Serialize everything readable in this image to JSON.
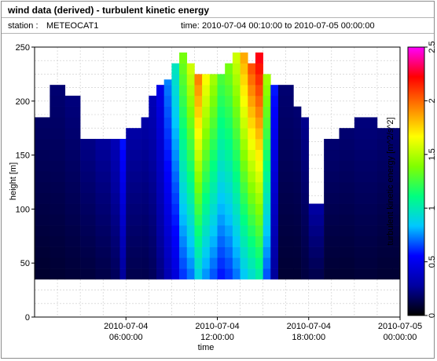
{
  "header": {
    "title": "wind data (derived) - turbulent kinetic energy",
    "station_label": "station :",
    "station_value": "METEOCAT1",
    "time_label": "time:",
    "time_range": "2010-07-04 00:10:00 to 2010-07-05 00:00:00"
  },
  "chart_data": {
    "type": "heatmap",
    "xlabel": "time",
    "ylabel": "height [m]",
    "colorbar_label": "turbulent kinetic energy [m^2/s^2]",
    "xlim_hours": [
      0,
      24
    ],
    "ylim": [
      0,
      250
    ],
    "x_ticks": [
      {
        "hour": 6,
        "line1": "2010-07-04",
        "line2": "06:00:00"
      },
      {
        "hour": 12,
        "line1": "2010-07-04",
        "line2": "12:00:00"
      },
      {
        "hour": 18,
        "line1": "2010-07-04",
        "line2": "18:00:00"
      },
      {
        "hour": 24,
        "line1": "2010-07-05",
        "line2": "00:00:00"
      }
    ],
    "y_ticks": [
      0,
      50,
      100,
      150,
      200,
      250
    ],
    "colorbar_ticks": [
      0,
      0.5,
      1,
      1.5,
      2,
      2.5
    ],
    "colorbar_range": [
      0,
      2.5
    ],
    "grid": true,
    "colormap": [
      "#000000",
      "#0000a0",
      "#0000ff",
      "#00c8ff",
      "#00ff80",
      "#80ff00",
      "#ffff00",
      "#ff8000",
      "#ff0000",
      "#ff00ff"
    ],
    "columns": [
      {
        "h": 0.0,
        "top": 185,
        "tke": 0.18
      },
      {
        "h": 1.0,
        "top": 215,
        "tke": 0.2
      },
      {
        "h": 2.0,
        "top": 205,
        "tke": 0.22
      },
      {
        "h": 3.0,
        "top": 165,
        "tke": 0.24
      },
      {
        "h": 4.0,
        "top": 165,
        "tke": 0.28
      },
      {
        "h": 5.0,
        "top": 165,
        "tke": 0.35
      },
      {
        "h": 5.6,
        "top": 165,
        "tke": 0.6
      },
      {
        "h": 6.0,
        "top": 175,
        "tke": 0.3
      },
      {
        "h": 7.0,
        "top": 185,
        "tke": 0.3
      },
      {
        "h": 7.5,
        "top": 205,
        "tke": 0.35
      },
      {
        "h": 8.0,
        "top": 215,
        "tke": 0.5
      },
      {
        "h": 8.5,
        "top": 220,
        "tke": 0.75
      },
      {
        "h": 9.0,
        "top": 235,
        "tke": 1.0
      },
      {
        "h": 9.5,
        "top": 245,
        "tke": 1.4
      },
      {
        "h": 10.0,
        "top": 235,
        "tke": 1.6
      },
      {
        "h": 10.5,
        "top": 225,
        "tke": 2.0
      },
      {
        "h": 11.0,
        "top": 225,
        "tke": 1.7
      },
      {
        "h": 11.5,
        "top": 225,
        "tke": 1.5
      },
      {
        "h": 12.0,
        "top": 225,
        "tke": 1.3
      },
      {
        "h": 12.5,
        "top": 235,
        "tke": 1.4
      },
      {
        "h": 13.0,
        "top": 245,
        "tke": 1.6
      },
      {
        "h": 13.5,
        "top": 245,
        "tke": 1.9
      },
      {
        "h": 14.0,
        "top": 235,
        "tke": 2.1
      },
      {
        "h": 14.5,
        "top": 245,
        "tke": 2.3
      },
      {
        "h": 15.0,
        "top": 225,
        "tke": 1.5
      },
      {
        "h": 15.5,
        "top": 215,
        "tke": 0.6
      },
      {
        "h": 16.0,
        "top": 215,
        "tke": 0.2
      },
      {
        "h": 17.0,
        "top": 195,
        "tke": 0.2
      },
      {
        "h": 17.5,
        "top": 185,
        "tke": 0.25
      },
      {
        "h": 18.0,
        "top": 105,
        "tke": 0.3
      },
      {
        "h": 19.0,
        "top": 165,
        "tke": 0.2
      },
      {
        "h": 20.0,
        "top": 175,
        "tke": 0.2
      },
      {
        "h": 21.0,
        "top": 185,
        "tke": 0.22
      },
      {
        "h": 22.5,
        "top": 175,
        "tke": 0.2
      },
      {
        "h": 23.5,
        "top": 175,
        "tke": 0.2
      }
    ]
  }
}
